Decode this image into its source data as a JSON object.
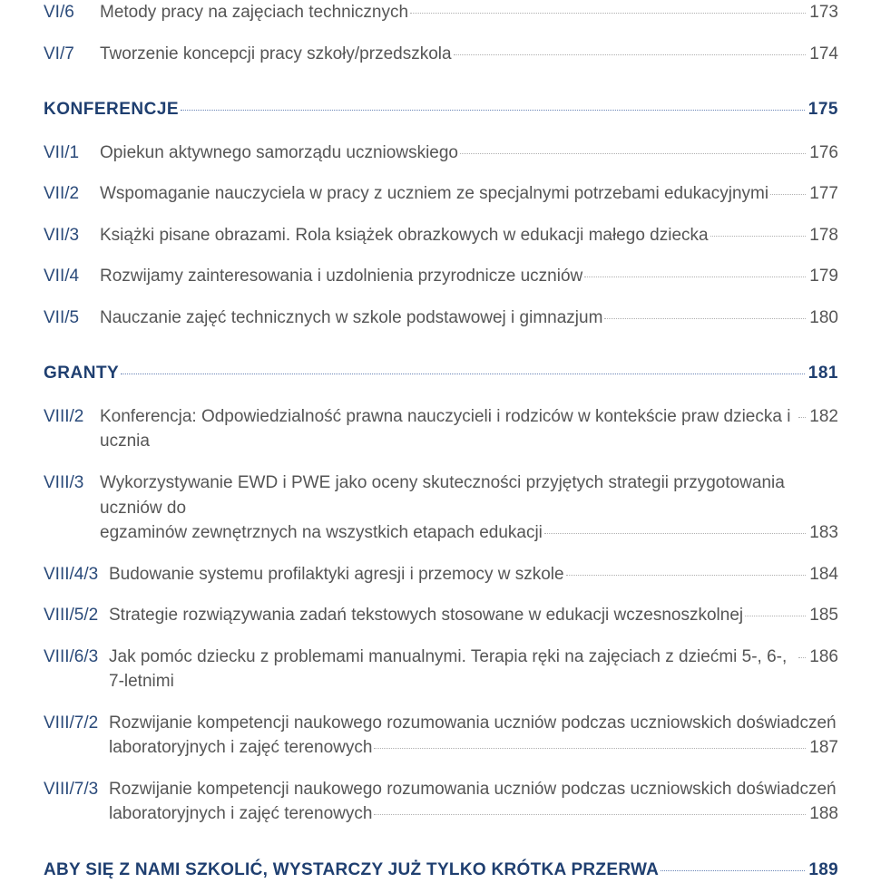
{
  "colors": {
    "text": "#555555",
    "code": "#2a4a7a",
    "heading": "#1f3f70",
    "leader": "#b0b0b0",
    "leader_heading": "#6a85b6",
    "background": "#ffffff"
  },
  "typography": {
    "body_fontsize_pt": 14,
    "body_weight": 300,
    "heading_weight": 600,
    "font_family": "Myriad Pro / sans-serif"
  },
  "items": [
    {
      "code": "VI/6",
      "label": "Metody pracy na zajęciach technicznych",
      "page": "173"
    },
    {
      "code": "VI/7",
      "label": "Tworzenie koncepcji pracy szkoły/przedszkola",
      "page": "174"
    }
  ],
  "section_konferencje": {
    "label": "KONFERENCJE",
    "page": "175"
  },
  "konferencje_items": [
    {
      "code": "VII/1",
      "label": "Opiekun aktywnego samorządu uczniowskiego",
      "page": "176"
    },
    {
      "code": "VII/2",
      "label": "Wspomaganie nauczyciela w pracy z uczniem ze specjalnymi potrzebami edukacyjnymi",
      "page": "177"
    },
    {
      "code": "VII/3",
      "label": "Książki pisane obrazami. Rola książek obrazkowych w edukacji małego dziecka",
      "page": "178"
    },
    {
      "code": "VII/4",
      "label": "Rozwijamy zainteresowania i uzdolnienia przyrodnicze uczniów",
      "page": "179"
    },
    {
      "code": "VII/5",
      "label": "Nauczanie zajęć technicznych w szkole podstawowej i gimnazjum",
      "page": "180"
    }
  ],
  "section_granty": {
    "label": "GRANTY",
    "page": "181"
  },
  "granty_items": [
    {
      "code": "VIII/2",
      "label": "Konferencja: Odpowiedzialność prawna nauczycieli i rodziców w kontekście praw dziecka i ucznia",
      "page": "182"
    },
    {
      "code": "VIII/3",
      "line1": "Wykorzystywanie EWD i PWE jako oceny skuteczności przyjętych strategii przygotowania uczniów do",
      "line2": "egzaminów zewnętrznych na wszystkich etapach edukacji",
      "page": "183",
      "multiline": true
    },
    {
      "code": "VIII/4/3",
      "label": "Budowanie systemu profilaktyki agresji i przemocy w szkole",
      "page": "184"
    },
    {
      "code": "VIII/5/2",
      "label": "Strategie rozwiązywania zadań tekstowych stosowane w edukacji wczesnoszkolnej",
      "page": "185"
    },
    {
      "code": "VIII/6/3",
      "label": "Jak pomóc dziecku z problemami manualnymi. Terapia ręki na zajęciach z dziećmi 5-, 6-, 7-letnimi",
      "page": "186"
    },
    {
      "code": "VIII/7/2",
      "line1": "Rozwijanie kompetencji naukowego rozumowania uczniów podczas uczniowskich doświadczeń",
      "line2": "laboratoryjnych i zajęć terenowych",
      "page": "187",
      "multiline": true
    },
    {
      "code": "VIII/7/3",
      "line1": "Rozwijanie kompetencji naukowego rozumowania uczniów podczas uczniowskich doświadczeń",
      "line2": "laboratoryjnych i zajęć terenowych",
      "page": "188",
      "multiline": true
    }
  ],
  "footer": {
    "label": "ABY SIĘ Z NAMI SZKOLIĆ, WYSTARCZY JUŻ TYLKO KRÓTKA PRZERWA",
    "page": "189"
  }
}
